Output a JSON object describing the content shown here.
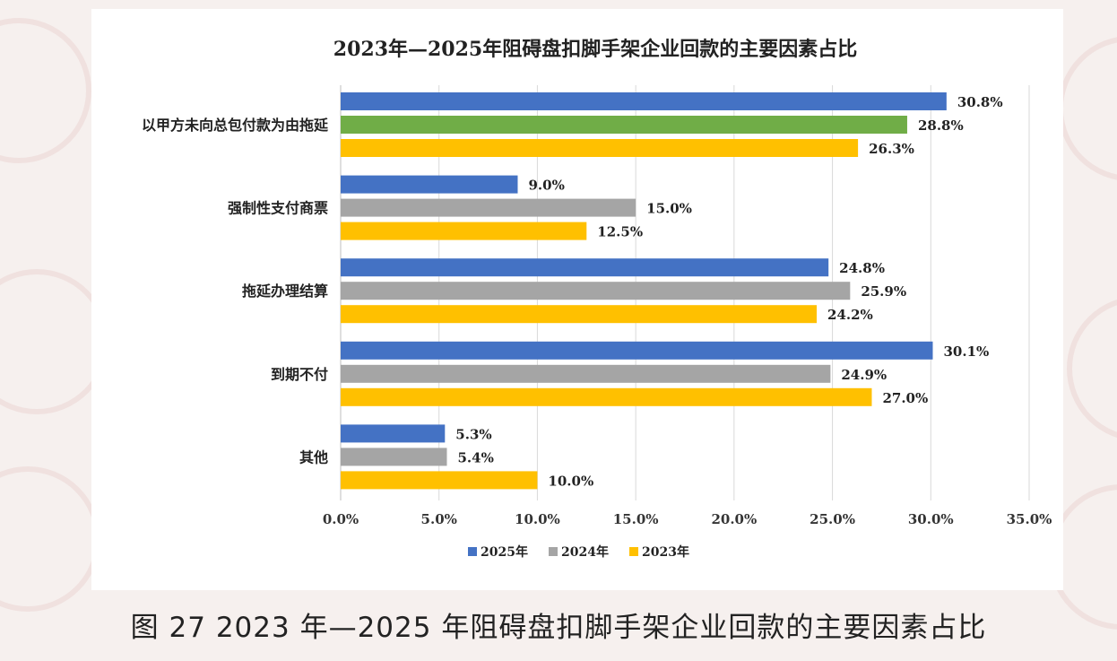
{
  "caption": "图 27 2023 年—2025 年阻碍盘扣脚手架企业回款的主要因素占比",
  "chart_data": {
    "type": "bar",
    "orientation": "horizontal",
    "title": "2023年—2025年阻碍盘扣脚手架企业回款的主要因素占比",
    "categories": [
      "以甲方未向总包付款为由拖延",
      "强制性支付商票",
      "拖延办理结算",
      "到期不付",
      "其他"
    ],
    "series": [
      {
        "name": "2025年",
        "color": "#4472c4",
        "values": [
          30.8,
          9.0,
          24.8,
          30.1,
          5.3
        ]
      },
      {
        "name": "2024年",
        "color": "#a5a5a5",
        "values": [
          28.8,
          15.0,
          25.9,
          24.9,
          5.4
        ]
      },
      {
        "name": "2023年",
        "color": "#ffc000",
        "values": [
          26.3,
          12.5,
          24.2,
          27.0,
          10.0
        ]
      }
    ],
    "bar_color_overrides": [
      {
        "series": 1,
        "category": 0,
        "color": "#70ad47"
      }
    ],
    "xlim": [
      0,
      35
    ],
    "xticks": [
      0,
      5,
      10,
      15,
      20,
      25,
      30,
      35
    ],
    "xtick_labels": [
      "0.0%",
      "5.0%",
      "10.0%",
      "15.0%",
      "20.0%",
      "25.0%",
      "30.0%",
      "35.0%"
    ],
    "value_suffix": "%",
    "value_decimals": 1,
    "grid": "vertical",
    "legend": "bottom"
  }
}
